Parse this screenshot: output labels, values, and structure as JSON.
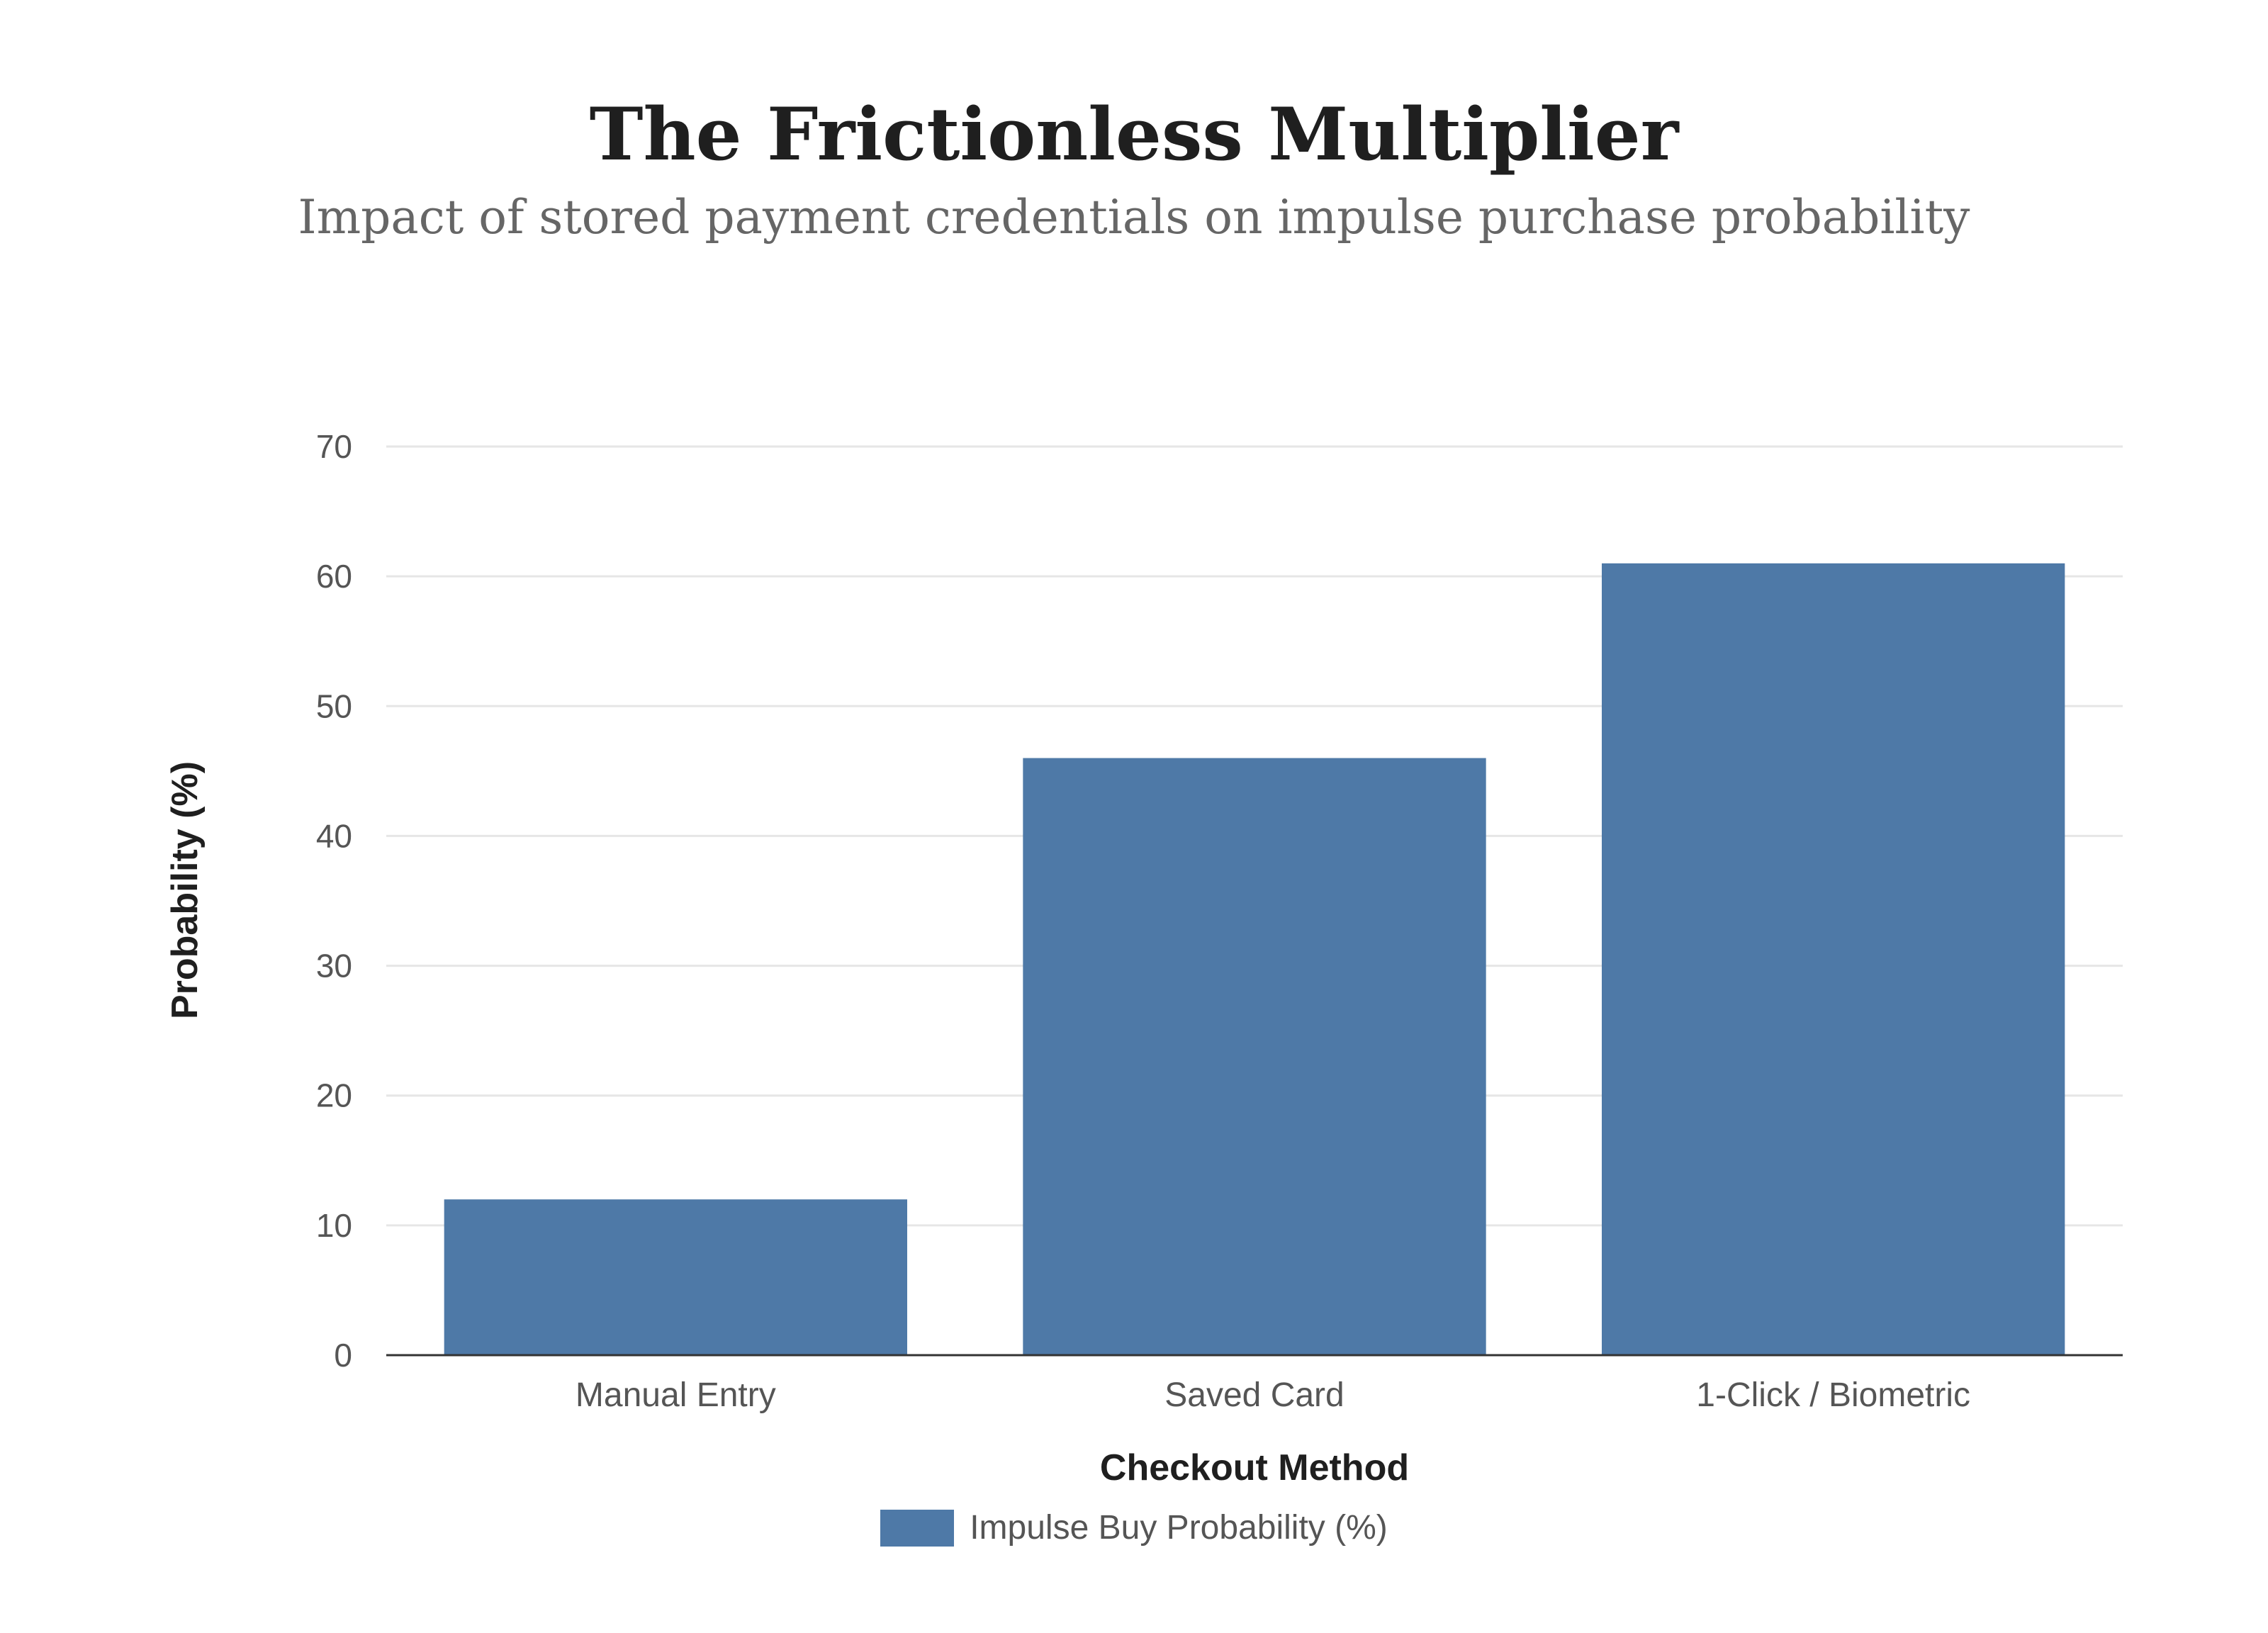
{
  "chart_data": {
    "type": "bar",
    "title": "The Frictionless Multiplier",
    "subtitle": "Impact of stored payment credentials on impulse purchase probability",
    "xlabel": "Checkout Method",
    "ylabel": "Probability (%)",
    "categories": [
      "Manual Entry",
      "Saved Card",
      "1-Click / Biometric"
    ],
    "series": [
      {
        "name": "Impulse Buy Probability (%)",
        "values": [
          12,
          46,
          61
        ],
        "color": "#4e79a7"
      }
    ],
    "ylim": [
      0,
      70
    ],
    "yticks": [
      0,
      10,
      20,
      30,
      40,
      50,
      60,
      70
    ],
    "grid": true,
    "legend_position": "bottom"
  }
}
